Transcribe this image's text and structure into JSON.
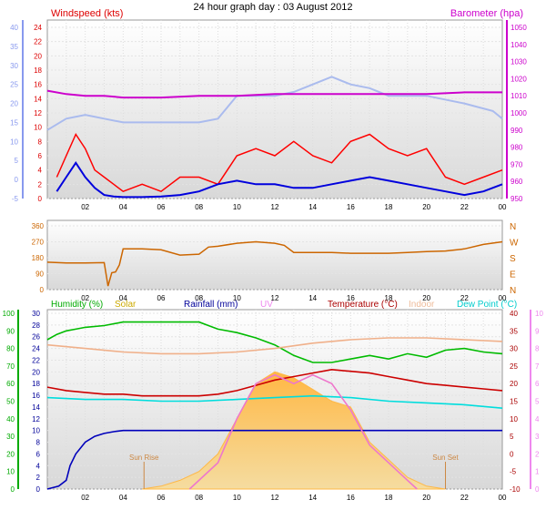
{
  "chart_data": [
    {
      "type": "line",
      "title": "24 hour graph day : 03 August 2012",
      "x_ticks": [
        "02",
        "04",
        "06",
        "08",
        "10",
        "12",
        "14",
        "16",
        "18",
        "20",
        "22",
        "00"
      ],
      "left_axis_labels": [
        {
          "text": "Windspeed (kts)",
          "color": "#dd0000"
        }
      ],
      "right_axis_labels": [
        {
          "text": "Barometer (hpa)",
          "color": "#cc00cc"
        }
      ],
      "y_left_inner": {
        "range": [
          0,
          24
        ],
        "ticks": [
          0,
          2,
          4,
          6,
          8,
          10,
          12,
          14,
          16,
          18,
          20,
          22,
          24
        ],
        "color": "#dd0000"
      },
      "y_left_outer": {
        "range": [
          -5,
          40
        ],
        "ticks": [
          -5,
          0,
          5,
          10,
          15,
          20,
          25,
          30,
          35,
          40
        ],
        "color": "#8899ee"
      },
      "y_right": {
        "range": [
          950,
          1050
        ],
        "ticks": [
          950,
          960,
          970,
          980,
          990,
          1000,
          1010,
          1020,
          1030,
          1040,
          1050
        ],
        "color": "#cc00cc"
      },
      "series": [
        {
          "name": "Windspeed (kts)",
          "color": "#ff0000",
          "axis": "left",
          "x": [
            0.5,
            1.0,
            1.5,
            2.0,
            2.5,
            3.0,
            3.5,
            4.0,
            5.0,
            6.0,
            7.0,
            8.0,
            9.0,
            10.0,
            11.0,
            12.0,
            13.0,
            14.0,
            15.0,
            16.0,
            17.0,
            18.0,
            19.0,
            20.0,
            21.0,
            22.0,
            23.0,
            24.0
          ],
          "y": [
            3,
            6,
            9,
            7,
            4,
            3,
            2,
            1,
            2,
            1,
            3,
            3,
            2,
            6,
            7,
            6,
            8,
            6,
            5,
            8,
            9,
            7,
            6,
            7,
            3,
            2,
            3,
            4
          ]
        },
        {
          "name": "Wind average (kts)",
          "color": "#0000dd",
          "axis": "left",
          "x": [
            0.5,
            1.0,
            1.5,
            2.0,
            2.5,
            3.0,
            3.5,
            4.0,
            5.0,
            6.0,
            7.0,
            8.0,
            9.0,
            10.0,
            11.0,
            12.0,
            13.0,
            14.0,
            15.0,
            16.0,
            17.0,
            18.0,
            19.0,
            20.0,
            21.0,
            22.0,
            23.0,
            24.0
          ],
          "y": [
            1,
            3,
            5,
            3,
            1.5,
            0.5,
            0.3,
            0.2,
            0.2,
            0.3,
            0.5,
            1,
            2,
            2.5,
            2,
            2,
            1.5,
            1.5,
            2,
            2.5,
            3,
            2.5,
            2,
            1.5,
            1,
            0.5,
            1,
            2
          ]
        },
        {
          "name": "Gust",
          "color": "#aabbee",
          "axis": "left_outer",
          "x": [
            0.0,
            1.0,
            2.0,
            3.0,
            4.0,
            6.0,
            8.0,
            9.0,
            9.5,
            10.0,
            11.0,
            12.0,
            13.0,
            14.0,
            15.0,
            16.0,
            17.0,
            18.0,
            20.0,
            22.0,
            23.5,
            24.0
          ],
          "y": [
            13,
            16,
            17,
            16,
            15,
            15,
            15,
            16,
            19,
            22,
            22,
            22,
            23,
            25,
            27,
            25,
            24,
            22,
            22,
            20,
            18,
            16
          ]
        },
        {
          "name": "Barometer (hpa)",
          "color": "#cc00cc",
          "axis": "right",
          "x": [
            0,
            1,
            2,
            3,
            4,
            6,
            8,
            10,
            12,
            14,
            16,
            18,
            20,
            22,
            24
          ],
          "y": [
            1013,
            1011,
            1010,
            1010,
            1009,
            1009,
            1010,
            1010,
            1011,
            1011,
            1011,
            1011,
            1011,
            1012,
            1012
          ]
        }
      ],
      "annotations": []
    },
    {
      "type": "scatter",
      "title": "",
      "x_ticks": [
        "02",
        "04",
        "06",
        "08",
        "10",
        "12",
        "14",
        "16",
        "18",
        "20",
        "22",
        "00"
      ],
      "y_left": {
        "range": [
          0,
          360
        ],
        "ticks": [
          0,
          90,
          180,
          270,
          360
        ],
        "color": "#cc6600"
      },
      "compass_labels": [
        "N",
        "W",
        "S",
        "E",
        "N"
      ],
      "series": [
        {
          "name": "Wind direction",
          "color": "#cc6600",
          "x": [
            0.0,
            1.0,
            2.0,
            3.0,
            3.2,
            3.4,
            3.6,
            3.8,
            4.0,
            5.0,
            6.0,
            7.0,
            8.0,
            8.5,
            9.0,
            10.0,
            11.0,
            12.0,
            12.5,
            13.0,
            14.0,
            15.0,
            16.0,
            17.0,
            18.0,
            19.0,
            20.0,
            21.0,
            22.0,
            23.0,
            24.0
          ],
          "y": [
            155,
            150,
            150,
            152,
            20,
            95,
            100,
            140,
            230,
            230,
            225,
            195,
            200,
            240,
            245,
            262,
            270,
            262,
            250,
            210,
            210,
            210,
            205,
            205,
            205,
            210,
            215,
            218,
            230,
            255,
            270
          ]
        }
      ]
    },
    {
      "type": "line",
      "title": "",
      "x_ticks": [
        "02",
        "04",
        "06",
        "08",
        "10",
        "12",
        "14",
        "16",
        "18",
        "20",
        "22",
        "00"
      ],
      "legend": [
        {
          "text": "Humidity (%)",
          "color": "#00aa00"
        },
        {
          "text": "Solar",
          "color": "#ccaa00"
        },
        {
          "text": "Rainfall (mm)",
          "color": "#000099"
        },
        {
          "text": "UV",
          "color": "#ee88ee"
        },
        {
          "text": "Temperature (°C)",
          "color": "#aa0000"
        },
        {
          "text": "Indoor",
          "color": "#eebb99"
        },
        {
          "text": "Dew Point (°C)",
          "color": "#00cccc"
        }
      ],
      "y_humidity": {
        "range": [
          0,
          100
        ],
        "ticks": [
          0,
          10,
          20,
          30,
          40,
          50,
          60,
          70,
          80,
          90,
          100
        ],
        "color": "#00aa00"
      },
      "y_rain": {
        "range": [
          0,
          30
        ],
        "ticks": [
          0,
          2,
          4,
          6,
          8,
          10,
          12,
          14,
          16,
          18,
          20,
          22,
          24,
          26,
          28,
          30
        ],
        "color": "#000099"
      },
      "y_temp": {
        "range": [
          -10,
          40
        ],
        "ticks": [
          -10,
          -5,
          0,
          5,
          10,
          15,
          20,
          25,
          30,
          35,
          40
        ],
        "color": "#aa0000"
      },
      "y_uv": {
        "range": [
          0,
          10
        ],
        "ticks": [
          0,
          1,
          2,
          3,
          4,
          5,
          6,
          7,
          8,
          9,
          10
        ],
        "color": "#ee88ee"
      },
      "series": [
        {
          "name": "Humidity (%)",
          "color": "#00bb00",
          "axis": "humidity",
          "x": [
            0.0,
            0.5,
            1.0,
            1.5,
            2.0,
            3.0,
            4.0,
            5.0,
            6.0,
            7.0,
            8.0,
            8.5,
            9.0,
            10.0,
            11.0,
            12.0,
            13.0,
            14.0,
            15.0,
            16.0,
            17.0,
            18.0,
            19.0,
            20.0,
            21.0,
            22.0,
            23.0,
            24.0
          ],
          "y": [
            85,
            88,
            90,
            91,
            92,
            93,
            95,
            95,
            95,
            95,
            95,
            93,
            91,
            89,
            86,
            82,
            76,
            72,
            72,
            74,
            76,
            74,
            77,
            75,
            79,
            80,
            78,
            77
          ]
        },
        {
          "name": "Temperature (°C)",
          "color": "#cc0000",
          "axis": "temp",
          "x": [
            0,
            1,
            2,
            3,
            4,
            5,
            6,
            7,
            8,
            9,
            10,
            11,
            12,
            13,
            14,
            15,
            16,
            17,
            18,
            19,
            20,
            21,
            22,
            23,
            24
          ],
          "y": [
            19,
            18,
            17.5,
            17,
            17,
            16.5,
            16.5,
            16.5,
            16.5,
            17,
            18,
            19.5,
            21,
            22,
            23,
            24,
            23.5,
            23,
            22,
            21,
            20,
            19.5,
            19,
            18.5,
            18
          ]
        },
        {
          "name": "Indoor",
          "color": "#f0b08a",
          "axis": "temp",
          "x": [
            0,
            2,
            4,
            6,
            8,
            10,
            12,
            14,
            16,
            18,
            20,
            22,
            24
          ],
          "y": [
            31,
            30,
            29,
            28.5,
            28.5,
            29,
            30,
            31.5,
            32.5,
            33,
            33,
            32.5,
            32
          ]
        },
        {
          "name": "Dew Point (°C)",
          "color": "#00dddd",
          "axis": "temp",
          "x": [
            0,
            2,
            4,
            6,
            8,
            10,
            12,
            14,
            16,
            18,
            20,
            22,
            24
          ],
          "y": [
            16,
            15.5,
            15.5,
            15,
            15,
            15.5,
            16,
            16.5,
            16,
            15,
            14.5,
            14,
            13
          ]
        },
        {
          "name": "Rainfall (mm)",
          "color": "#0000bb",
          "axis": "rain",
          "x": [
            0.0,
            0.6,
            1.0,
            1.2,
            1.5,
            2.0,
            2.5,
            3.0,
            3.5,
            4.0,
            24.0
          ],
          "y": [
            0,
            0.5,
            1.5,
            4,
            6,
            8,
            9,
            9.5,
            9.8,
            10,
            10
          ]
        },
        {
          "name": "UV",
          "color": "#ee77cc",
          "axis": "uv",
          "x": [
            7.5,
            8,
            9,
            10,
            11,
            12,
            13,
            14,
            15,
            16,
            17,
            18,
            19,
            19.5
          ],
          "y": [
            0,
            0.5,
            1.5,
            4,
            6,
            6.5,
            6,
            6.5,
            6,
            4.5,
            2.5,
            1.5,
            0.5,
            0
          ]
        },
        {
          "name": "Solar",
          "color": "#ffb845",
          "axis": "rain",
          "x": [
            5,
            6,
            7,
            8,
            9,
            10,
            11,
            12,
            13,
            14,
            15,
            16,
            17,
            18,
            19,
            20,
            21
          ],
          "y": [
            0,
            0.5,
            1.5,
            3,
            6,
            12,
            18,
            20,
            19,
            17,
            15,
            14,
            8,
            5,
            2,
            0.5,
            0
          ]
        }
      ],
      "annotations": [
        {
          "text": "Sun Rise",
          "x": 5.1,
          "color": "#cc8844"
        },
        {
          "text": "Sun Set",
          "x": 21.0,
          "color": "#cc8844"
        }
      ]
    }
  ]
}
